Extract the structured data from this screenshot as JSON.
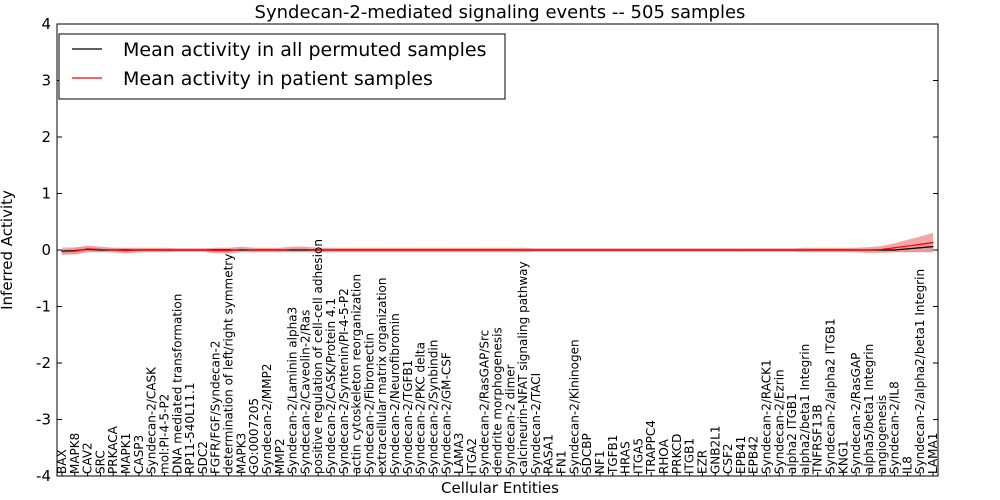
{
  "chart_data": {
    "type": "line",
    "title": "Syndecan-2-mediated signaling events -- 505 samples",
    "xlabel": "Cellular Entities",
    "ylabel": "Inferred Activity",
    "ylim": [
      -4,
      4
    ],
    "yticks": [
      -4,
      -3,
      -2,
      -1,
      0,
      1,
      2,
      3,
      4
    ],
    "legend_position": "top-left",
    "colors": {
      "permuted": "#000000",
      "patient": "#ff0000",
      "patient_band": "#f08080",
      "permuted_band": "#b0b0c0"
    },
    "categories": [
      "BAX",
      "MAPK8",
      "CAV2",
      "SRC",
      "PRKACA",
      "MAPK1",
      "CASP3",
      "Syndecan-2/CASK",
      "mol:PI-4-5-P2",
      "DNA mediated transformation",
      "RP11-540L11.1",
      "SDC2",
      "FGFR/FGF/Syndecan-2",
      "determination of left/right symmetry",
      "MAPK3",
      "GO:0007205",
      "Syndecan-2/MMP2",
      "MMP2",
      "Syndecan-2/Laminin alpha3",
      "Syndecan-2/Caveolin-2/Ras",
      "positive regulation of cell-cell adhesion",
      "Syndecan-2/CASK/Protein 4.1",
      "Syndecan-2/Syntenin/PI-4-5-P2",
      "actin cytoskeleton reorganization",
      "Syndecan-2/Fibronectin",
      "extracellular matrix organization",
      "Syndecan-2/Neurofibromin",
      "Syndecan-2/TGFB1",
      "Syndecan-2/PKC delta",
      "Syndecan-2/Synbindin",
      "Syndecan-2/GM-CSF",
      "LAMA3",
      "ITGA2",
      "Syndecan-2/RasGAP/Src",
      "dendrite morphogenesis",
      "Syndecan-2 dimer",
      "calcineurin-NFAT signaling pathway",
      "Syndecan-2/TACI",
      "RASA1",
      "FN1",
      "Syndecan-2/Kininogen",
      "SDCBP",
      "NF1",
      "TGFB1",
      "HRAS",
      "ITGA5",
      "TRAPPC4",
      "RHOA",
      "PRKCD",
      "ITGB1",
      "EZR",
      "GNB2L1",
      "CSF2",
      "EPB41",
      "EPB42",
      "Syndecan-2/RACK1",
      "Syndecan-2/Ezrin",
      "alpha2 ITGB1",
      "alpha2/beta1 Integrin",
      "TNFRSF13B",
      "Syndecan-2/alpha2 ITGB1",
      "KNG1",
      "Syndecan-2/RasGAP",
      "alpha5/beta1 Integrin",
      "angiogenesis",
      "Syndecan-2/IL8",
      "IL8",
      "Syndecan-2/alpha2/beta1 Integrin",
      "LAMA1"
    ],
    "series": [
      {
        "name": "Mean activity in all permuted samples",
        "values": [
          -0.02,
          -0.01,
          0.01,
          0.0,
          0.0,
          0.0,
          0.0,
          0.0,
          0.0,
          0.0,
          0.0,
          0.0,
          0.0,
          0.0,
          0.0,
          0.0,
          0.0,
          0.0,
          0.0,
          0.0,
          0.0,
          0.0,
          0.0,
          0.0,
          0.0,
          0.0,
          0.0,
          0.0,
          0.0,
          0.0,
          0.0,
          0.0,
          0.0,
          0.0,
          0.0,
          0.0,
          0.0,
          0.0,
          0.0,
          0.0,
          0.0,
          0.0,
          0.0,
          0.0,
          0.0,
          0.0,
          0.0,
          0.0,
          0.0,
          0.0,
          0.0,
          0.0,
          0.0,
          0.0,
          0.0,
          0.0,
          0.0,
          0.0,
          0.0,
          0.0,
          0.0,
          0.0,
          0.0,
          0.0,
          0.0,
          0.0,
          0.02,
          0.04,
          0.06
        ],
        "band": [
          0.07,
          0.06,
          0.04,
          0.03,
          0.03,
          0.02,
          0.02,
          0.02,
          0.02,
          0.02,
          0.02,
          0.02,
          0.02,
          0.02,
          0.02,
          0.02,
          0.02,
          0.02,
          0.02,
          0.02,
          0.02,
          0.02,
          0.02,
          0.02,
          0.02,
          0.02,
          0.02,
          0.02,
          0.02,
          0.02,
          0.02,
          0.02,
          0.02,
          0.02,
          0.02,
          0.02,
          0.02,
          0.02,
          0.02,
          0.02,
          0.02,
          0.02,
          0.02,
          0.02,
          0.02,
          0.02,
          0.02,
          0.02,
          0.02,
          0.02,
          0.02,
          0.02,
          0.02,
          0.02,
          0.02,
          0.02,
          0.02,
          0.02,
          0.02,
          0.02,
          0.02,
          0.02,
          0.02,
          0.02,
          0.03,
          0.04,
          0.06,
          0.08,
          0.1
        ]
      },
      {
        "name": "Mean activity in patient samples",
        "values": [
          -0.03,
          -0.02,
          0.02,
          0.01,
          0.0,
          -0.01,
          0.0,
          0.0,
          0.0,
          0.0,
          0.0,
          0.0,
          -0.01,
          -0.01,
          0.01,
          0.0,
          0.0,
          0.0,
          0.01,
          0.01,
          0.0,
          0.0,
          0.0,
          0.0,
          0.0,
          0.0,
          0.0,
          0.0,
          0.0,
          0.0,
          0.0,
          0.0,
          0.0,
          0.0,
          0.0,
          0.0,
          0.0,
          0.0,
          0.0,
          0.0,
          0.0,
          0.0,
          0.0,
          0.0,
          0.0,
          0.0,
          0.0,
          0.0,
          0.0,
          0.0,
          0.0,
          0.0,
          0.0,
          0.0,
          0.0,
          0.0,
          0.0,
          0.0,
          0.0,
          0.0,
          0.0,
          0.0,
          0.0,
          0.0,
          0.01,
          0.04,
          0.07,
          0.1,
          0.13
        ],
        "band": [
          0.05,
          0.06,
          0.06,
          0.05,
          0.04,
          0.05,
          0.04,
          0.04,
          0.04,
          0.03,
          0.03,
          0.03,
          0.05,
          0.05,
          0.05,
          0.04,
          0.04,
          0.04,
          0.05,
          0.05,
          0.04,
          0.04,
          0.04,
          0.04,
          0.04,
          0.04,
          0.04,
          0.04,
          0.04,
          0.04,
          0.04,
          0.04,
          0.04,
          0.04,
          0.04,
          0.04,
          0.04,
          0.03,
          0.03,
          0.03,
          0.03,
          0.03,
          0.03,
          0.03,
          0.03,
          0.03,
          0.03,
          0.03,
          0.03,
          0.03,
          0.03,
          0.03,
          0.03,
          0.03,
          0.03,
          0.03,
          0.03,
          0.03,
          0.04,
          0.04,
          0.04,
          0.04,
          0.04,
          0.05,
          0.06,
          0.08,
          0.11,
          0.14,
          0.17
        ]
      }
    ]
  }
}
